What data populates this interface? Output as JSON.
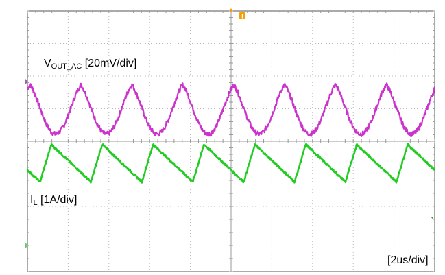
{
  "chart_data": {
    "type": "line",
    "title": "",
    "grid": true,
    "divisions": {
      "horizontal": 10,
      "vertical": 8
    },
    "timebase": "[2us/div]",
    "x_unit": "us",
    "xlim": [
      0,
      20
    ],
    "period_us": 2.5,
    "cycles_shown": 8,
    "series": [
      {
        "name_main": "V",
        "name_sub": "OUT_AC",
        "scale": "[20mV/div]",
        "color": "#cc33cc",
        "waveform": "ripple",
        "unit": "mV",
        "ylim": [
          -80,
          80
        ],
        "peak_mV": 2,
        "trough_mV": -28,
        "noise_mV": 3
      },
      {
        "name_main": "I",
        "name_sub": "L",
        "scale": "[1A/div]",
        "color": "#22cc22",
        "waveform": "sawtooth",
        "unit": "A",
        "ylim": [
          -4,
          4
        ],
        "peak_A": 0.85,
        "valley_A": -0.3,
        "rise_fraction": 0.22
      }
    ],
    "markers": {
      "trigger": {
        "glyph": "T",
        "color": "#f5a000"
      },
      "ch1_ground": {
        "color": "#9966aa"
      },
      "ch2_ground": {
        "color": "#66cc66"
      },
      "right_marker": {
        "color": "#22aa22"
      }
    }
  }
}
